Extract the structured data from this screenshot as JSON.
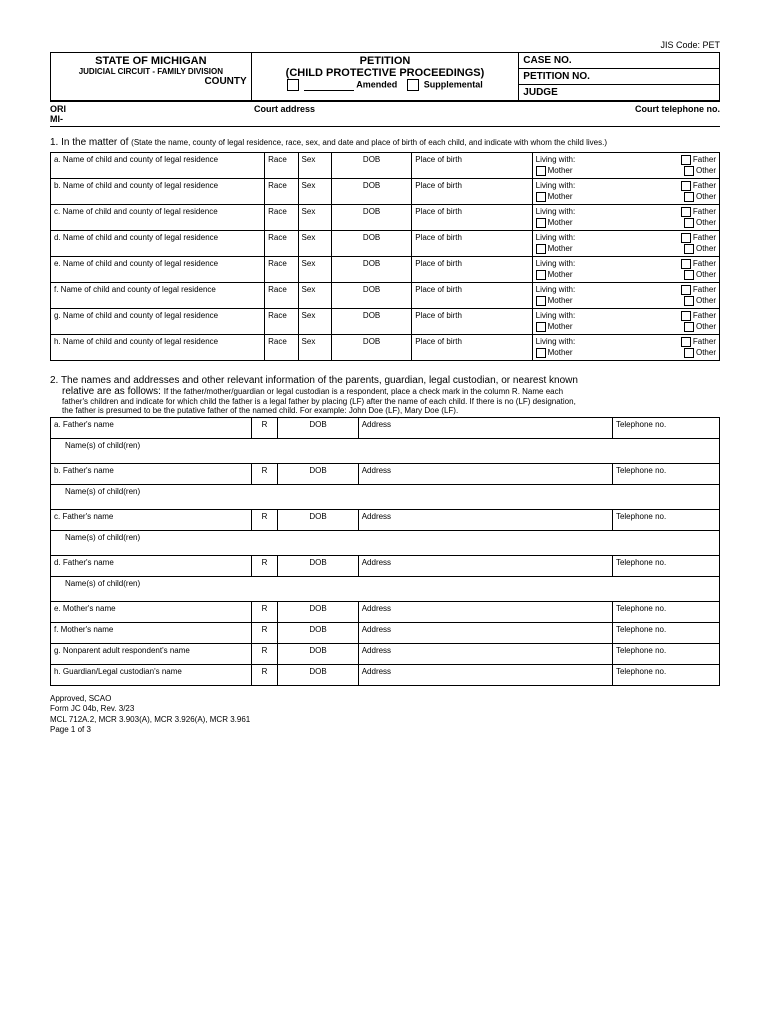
{
  "jis_code": "JIS Code: PET",
  "header": {
    "state": "STATE OF MICHIGAN",
    "judicial": "JUDICIAL CIRCUIT - FAMILY DIVISION",
    "county": "COUNTY",
    "petition": "PETITION",
    "proceedings": "(CHILD PROTECTIVE PROCEEDINGS)",
    "amended": "Amended",
    "supplemental": "Supplemental",
    "case_no": "CASE NO.",
    "petition_no": "PETITION NO.",
    "judge": "JUDGE"
  },
  "ori": {
    "ori": "ORI",
    "mi": "MI-",
    "court_address": "Court address",
    "court_phone": "Court telephone no."
  },
  "section1": {
    "prefix": "1. In the matter of",
    "instruction": "(State the name, county of legal residence, race, sex, and date and place of birth of each child, and indicate with whom the child lives.)"
  },
  "child_cols": {
    "race": "Race",
    "sex": "Sex",
    "dob": "DOB",
    "pob": "Place of birth",
    "living_with": "Living with:",
    "father": "Father",
    "mother": "Mother",
    "other": "Other"
  },
  "child_rows": [
    "a. Name of child and county of legal residence",
    "b. Name of child and county of legal residence",
    "c. Name of child and county of legal residence",
    "d. Name of child and county of legal residence",
    "e. Name of child and county of legal residence",
    "f. Name of child and county of legal residence",
    "g. Name of child and county of legal residence",
    "h. Name of child and county of legal residence"
  ],
  "section2": {
    "line1": "2. The names and addresses and other relevant information of the parents, guardian, legal custodian, or nearest known",
    "line2_prefix": "relative are as follows:",
    "line2_small": "If the father/mother/guardian or legal custodian is a respondent, place a check mark in the column R. Name each",
    "line3": "father's children and indicate for which child the father is a legal father by placing (LF) after the name of each child. If there is no (LF) designation,",
    "line4": "the father is presumed to be the putative father of the named child. For example: John Doe (LF), Mary Doe (LF)."
  },
  "parent_cols": {
    "r": "R",
    "dob": "DOB",
    "address": "Address",
    "telephone": "Telephone no.",
    "children": "Name(s) of child(ren)"
  },
  "parent_rows": [
    {
      "label": "a. Father's name",
      "children": true
    },
    {
      "label": "b. Father's name",
      "children": true
    },
    {
      "label": "c. Father's name",
      "children": true
    },
    {
      "label": "d. Father's name",
      "children": true
    },
    {
      "label": "e. Mother's name",
      "children": false
    },
    {
      "label": "f. Mother's name",
      "children": false
    },
    {
      "label": "g. Nonparent adult respondent's name",
      "children": false
    },
    {
      "label": "h. Guardian/Legal custodian's name",
      "children": false
    }
  ],
  "footer": {
    "approved": "Approved, SCAO",
    "form": "Form JC 04b, Rev. 3/23",
    "mcl": "MCL 712A.2, MCR 3.903(A), MCR 3.926(A), MCR 3.961",
    "page": "Page 1 of 3"
  }
}
